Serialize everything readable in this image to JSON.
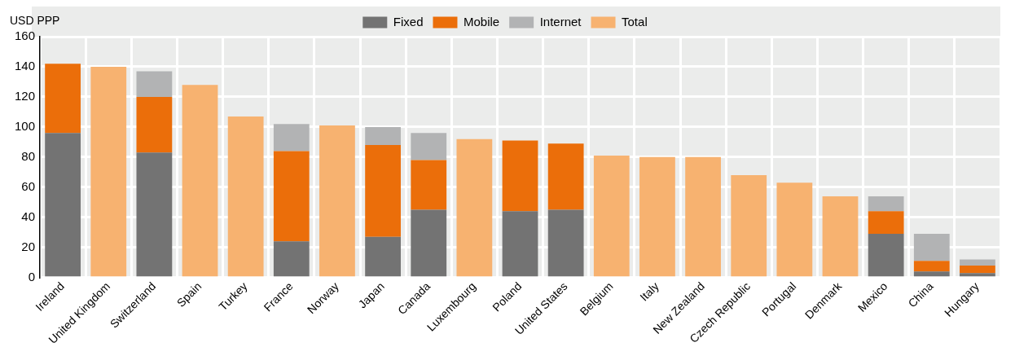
{
  "chart_data": {
    "type": "bar",
    "ylabel": "USD PPP",
    "stacked": true,
    "grid": true,
    "legend": "top",
    "ylim": [
      0,
      160
    ],
    "yticks": [
      0,
      20,
      40,
      60,
      80,
      100,
      120,
      140,
      160
    ],
    "categories": [
      "Ireland",
      "United Kingdom",
      "Switzerland",
      "Spain",
      "Turkey",
      "France",
      "Norway",
      "Japan",
      "Canada",
      "Luxembourg",
      "Poland",
      "United States",
      "Belgium",
      "Italy",
      "New Zealand",
      "Czech Republic",
      "Portugal",
      "Denmark",
      "Mexico",
      "China",
      "Hungary"
    ],
    "series": [
      {
        "name": "Fixed",
        "color": "#737373",
        "values": [
          96,
          null,
          83,
          null,
          null,
          24,
          null,
          27,
          45,
          null,
          44,
          45,
          null,
          null,
          null,
          null,
          null,
          null,
          29,
          4,
          3
        ]
      },
      {
        "name": "Mobile",
        "color": "#eb6e0a",
        "values": [
          46,
          null,
          37,
          null,
          null,
          60,
          null,
          61,
          33,
          null,
          47,
          44,
          null,
          null,
          null,
          null,
          null,
          null,
          15,
          7,
          5
        ]
      },
      {
        "name": "Internet",
        "color": "#b2b3b4",
        "values": [
          null,
          null,
          17,
          null,
          null,
          18,
          null,
          12,
          18,
          null,
          null,
          null,
          null,
          null,
          null,
          null,
          null,
          null,
          10,
          18,
          4
        ]
      },
      {
        "name": "Total",
        "color": "#f7b270",
        "values": [
          null,
          140,
          null,
          128,
          107,
          null,
          101,
          null,
          null,
          92,
          null,
          null,
          81,
          80,
          80,
          68,
          63,
          54,
          null,
          null,
          null
        ]
      }
    ]
  }
}
